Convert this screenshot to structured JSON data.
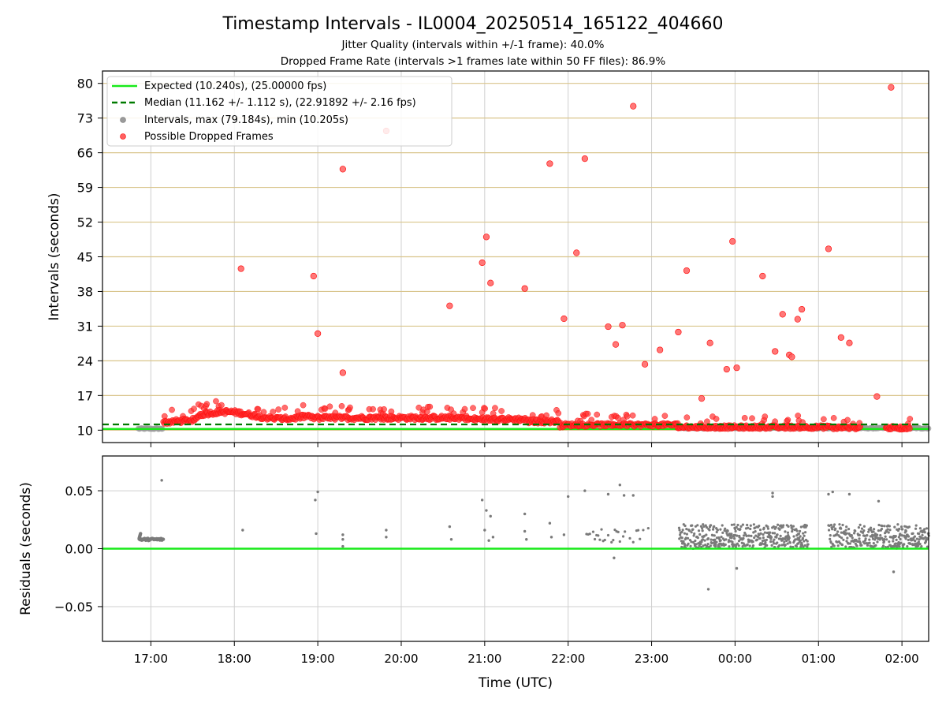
{
  "chart_data": [
    {
      "type": "scatter",
      "title": "Timestamp Intervals - IL0004_20250514_165122_404660",
      "subtitle_1": "Jitter Quality (intervals within +/-1 frame): 40.0%",
      "subtitle_2": "Dropped Frame Rate (intervals >1 frames late within 50 FF files): 86.9%",
      "ylabel": "Intervals (seconds)",
      "x_range_hours": [
        16.42,
        26.32
      ],
      "ylim": [
        7.5,
        82.5
      ],
      "y_ticks": [
        10,
        17,
        24,
        31,
        38,
        45,
        52,
        59,
        66,
        73,
        80
      ],
      "grid": "on",
      "legend_position": "upper-left",
      "legend": [
        {
          "label": "Expected (10.240s), (25.00000 fps)",
          "kind": "solid-line",
          "color": "#18ea1a"
        },
        {
          "label": "Median (11.162 +/- 1.112 s), (22.91892 +/- 2.16 fps)",
          "kind": "dashed-line",
          "color": "#007a00"
        },
        {
          "label": "Intervals, max (79.184s), min (10.205s)",
          "kind": "marker",
          "color": "#9a9a9a"
        },
        {
          "label": "Possible Dropped Frames",
          "kind": "marker",
          "color": "#ff3030"
        }
      ],
      "expected_interval": 10.24,
      "median_interval": 11.162,
      "intervals_max": 79.184,
      "intervals_min": 10.205,
      "normal_intervals_band": [
        [
          16.85,
          17.15,
          10.3
        ],
        [
          23.35,
          25.8,
          10.4
        ],
        [
          25.85,
          26.32,
          10.4
        ]
      ],
      "dropped_points": [
        [
          18.08,
          42.6
        ],
        [
          18.95,
          41.1
        ],
        [
          19.0,
          29.5
        ],
        [
          19.3,
          62.7
        ],
        [
          19.3,
          21.6
        ],
        [
          19.82,
          70.4
        ],
        [
          20.58,
          35.1
        ],
        [
          20.97,
          43.8
        ],
        [
          21.02,
          49.0
        ],
        [
          21.07,
          39.7
        ],
        [
          21.48,
          38.6
        ],
        [
          21.78,
          63.8
        ],
        [
          21.95,
          32.5
        ],
        [
          22.1,
          45.8
        ],
        [
          22.2,
          64.8
        ],
        [
          22.48,
          30.9
        ],
        [
          22.57,
          27.3
        ],
        [
          22.65,
          31.2
        ],
        [
          22.78,
          75.4
        ],
        [
          22.92,
          23.3
        ],
        [
          23.1,
          26.2
        ],
        [
          23.32,
          29.8
        ],
        [
          23.42,
          42.2
        ],
        [
          23.6,
          16.4
        ],
        [
          23.7,
          27.6
        ],
        [
          23.9,
          22.3
        ],
        [
          23.97,
          48.1
        ],
        [
          24.02,
          22.6
        ],
        [
          24.33,
          41.1
        ],
        [
          24.48,
          25.9
        ],
        [
          24.57,
          33.4
        ],
        [
          24.65,
          25.2
        ],
        [
          24.68,
          24.8
        ],
        [
          24.75,
          32.4
        ],
        [
          24.8,
          34.4
        ],
        [
          25.12,
          46.6
        ],
        [
          25.27,
          28.7
        ],
        [
          25.37,
          27.6
        ],
        [
          25.7,
          16.8
        ],
        [
          25.87,
          79.2
        ]
      ]
    },
    {
      "type": "scatter",
      "xlabel": "Time (UTC)",
      "ylabel": "Residuals (seconds)",
      "ylim": [
        -0.08,
        0.08
      ],
      "y_ticks": [
        -0.05,
        0.0,
        0.05
      ],
      "y_tick_labels": [
        "−0.05",
        "0.00",
        "0.05"
      ],
      "x_ticks_hours": [
        17,
        18,
        19,
        20,
        21,
        22,
        23,
        24,
        25,
        26
      ],
      "x_tick_labels": [
        "17:00",
        "18:00",
        "19:00",
        "20:00",
        "21:00",
        "22:00",
        "23:00",
        "00:00",
        "01:00",
        "02:00"
      ],
      "grid": "on",
      "residual_points": [
        [
          17.13,
          0.059
        ],
        [
          18.1,
          0.016
        ],
        [
          18.97,
          0.042
        ],
        [
          19.0,
          0.049
        ],
        [
          18.98,
          0.013
        ],
        [
          19.3,
          0.012
        ],
        [
          19.3,
          0.008
        ],
        [
          19.3,
          0.002
        ],
        [
          19.82,
          0.016
        ],
        [
          19.82,
          0.01
        ],
        [
          20.58,
          0.019
        ],
        [
          20.6,
          0.008
        ],
        [
          20.97,
          0.042
        ],
        [
          21.02,
          0.033
        ],
        [
          21.07,
          0.028
        ],
        [
          21.0,
          0.016
        ],
        [
          21.05,
          0.007
        ],
        [
          21.1,
          0.01
        ],
        [
          21.48,
          0.03
        ],
        [
          21.48,
          0.015
        ],
        [
          21.5,
          0.008
        ],
        [
          21.78,
          0.022
        ],
        [
          21.8,
          0.01
        ],
        [
          21.95,
          0.012
        ],
        [
          22.0,
          0.045
        ],
        [
          22.2,
          0.05
        ],
        [
          22.48,
          0.047
        ],
        [
          22.62,
          0.055
        ],
        [
          22.67,
          0.046
        ],
        [
          22.78,
          0.046
        ],
        [
          22.55,
          -0.008
        ],
        [
          23.68,
          -0.035
        ],
        [
          24.02,
          -0.017
        ],
        [
          24.45,
          0.048
        ],
        [
          24.45,
          0.045
        ],
        [
          25.12,
          0.047
        ],
        [
          25.17,
          0.049
        ],
        [
          25.37,
          0.047
        ],
        [
          25.72,
          0.041
        ],
        [
          25.9,
          -0.02
        ]
      ]
    }
  ]
}
